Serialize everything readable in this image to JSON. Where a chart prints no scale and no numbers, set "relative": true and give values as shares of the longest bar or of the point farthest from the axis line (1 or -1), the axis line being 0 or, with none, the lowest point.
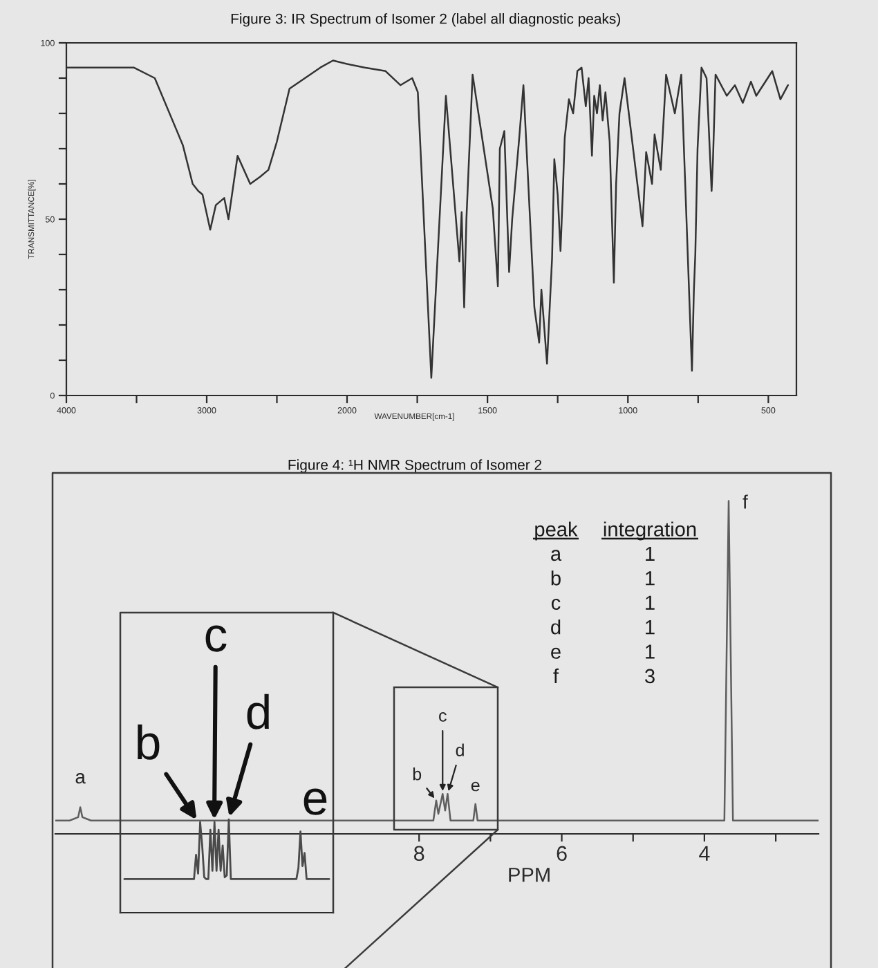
{
  "chart_data": [
    {
      "type": "line",
      "title": "Figure 3: IR Spectrum of Isomer 2 (label all diagnostic peaks)",
      "ylabel": "TRANSMITTANCE[%]",
      "x": [
        4000,
        3520,
        3370,
        3170,
        3100,
        3060,
        3030,
        2975,
        2935,
        2875,
        2845,
        2780,
        2690,
        2620,
        2560,
        2500,
        2410,
        2190,
        2100,
        2000
      ],
      "series": [
        {
          "color": "#333333",
          "values": [
            93,
            93,
            90,
            71,
            60,
            58,
            57,
            47,
            54,
            56,
            50,
            68,
            60,
            62,
            64,
            72,
            87,
            93,
            95,
            94
          ]
        }
      ],
      "xlim": [
        4000,
        2000
      ],
      "xticks": [
        4000,
        {
          "value": 3500,
          "label": null
        },
        3000,
        {
          "value": 2500,
          "label": null
        },
        2000
      ],
      "ylim": [
        0,
        100
      ],
      "yticks": [
        0,
        {
          "value": 10,
          "label": null
        },
        {
          "value": 20,
          "label": null
        },
        {
          "value": 30,
          "label": null
        },
        {
          "value": 40,
          "label": null
        },
        50,
        {
          "value": 60,
          "label": null
        },
        {
          "value": 70,
          "label": null
        },
        {
          "value": 80,
          "label": null
        },
        {
          "value": 90,
          "label": null
        },
        100
      ]
    },
    {
      "type": "line",
      "xlabel": "WAVENUMBER[cm-1]",
      "x": [
        2000,
        1937,
        1863,
        1810,
        1768,
        1748,
        1700,
        1648,
        1600,
        1592,
        1583,
        1575,
        1553,
        1481,
        1463,
        1456,
        1440,
        1423,
        1412,
        1387,
        1372,
        1333,
        1316,
        1308,
        1288,
        1270,
        1262,
        1250,
        1240,
        1232,
        1225,
        1210,
        1195,
        1180,
        1165,
        1150,
        1140,
        1128,
        1120,
        1110,
        1100,
        1090,
        1080,
        1065,
        1050,
        1042,
        1030,
        1012,
        948,
        935,
        914,
        905,
        883,
        864,
        833,
        810,
        772,
        765,
        760,
        752,
        738,
        720,
        702,
        697,
        688,
        648,
        619,
        591,
        562,
        543,
        486,
        457,
        430
      ],
      "series": [
        {
          "color": "#333333",
          "values": [
            94,
            93,
            92,
            88,
            90,
            86,
            5,
            85,
            38,
            52,
            25,
            50,
            91,
            53,
            31,
            70,
            75,
            35,
            50,
            73,
            88,
            25,
            15,
            30,
            9,
            39,
            67,
            57,
            41,
            57,
            73,
            84,
            80,
            92,
            93,
            82,
            90,
            68,
            85,
            80,
            88,
            78,
            86,
            72,
            32,
            60,
            80,
            90,
            48,
            69,
            60,
            74,
            64,
            91,
            80,
            91,
            7,
            30,
            40,
            70,
            93,
            90,
            58,
            67,
            91,
            85,
            88,
            83,
            89,
            85,
            92,
            84,
            88
          ]
        }
      ],
      "xlim": [
        2000,
        400
      ],
      "xticks": [
        {
          "value": 1750,
          "label": null
        },
        1500,
        {
          "value": 1250,
          "label": null
        },
        1000,
        {
          "value": 750,
          "label": null
        },
        500
      ],
      "ylim": [
        0,
        100
      ],
      "tick_labels": "x"
    },
    {
      "type": "line",
      "title": "Figure 4: ¹H NMR Spectrum of Isomer 2",
      "xlabel": "PPM",
      "relative": true,
      "x": [
        13.1,
        12.9,
        12.78,
        12.75,
        12.72,
        12.6,
        7.8,
        7.76,
        7.73,
        7.67,
        7.635,
        7.6,
        7.56,
        7.24,
        7.21,
        7.18,
        3.72,
        3.66,
        3.6,
        2.4
      ],
      "series": [
        {
          "color": "#5e5e5e",
          "values": [
            0.04,
            0.04,
            0.05,
            0.08,
            0.05,
            0.04,
            0.04,
            0.1,
            0.06,
            0.12,
            0.07,
            0.12,
            0.04,
            0.04,
            0.09,
            0.04,
            0.04,
            1,
            0.04,
            0.04
          ]
        }
      ],
      "xlim": [
        13.1,
        2.4
      ],
      "xticks": [
        8,
        {
          "value": 7,
          "label": null
        },
        6,
        {
          "value": 5,
          "label": null
        },
        4,
        {
          "value": 3,
          "label": null
        }
      ],
      "annotations": [
        {
          "text": "a",
          "x": 12.75,
          "y": 0.08
        },
        {
          "text": "b",
          "x": 7.76,
          "y": 0.1
        },
        {
          "text": "c",
          "x": 7.67,
          "y": 0.12
        },
        {
          "text": "d",
          "x": 7.6,
          "y": 0.12
        },
        {
          "text": "e",
          "x": 7.21,
          "y": 0.09
        },
        {
          "text": "f",
          "x": 3.66,
          "y": 1
        },
        "peak",
        "integration",
        "a",
        "1",
        "b",
        "1",
        "c",
        "1",
        "d",
        "1",
        "e",
        "1",
        "f",
        "3"
      ]
    },
    {
      "type": "line",
      "relative": true,
      "categories": [
        null,
        null,
        null,
        null,
        null,
        null,
        null,
        null,
        null,
        null,
        null,
        null,
        null,
        null,
        null,
        null,
        null,
        null,
        null,
        null,
        null,
        null,
        null,
        null,
        null,
        null,
        null,
        null,
        null,
        null,
        null,
        null,
        null,
        null,
        null,
        null,
        null,
        null,
        null,
        null,
        null,
        null,
        null,
        null,
        null,
        null,
        null,
        null,
        null,
        null,
        null,
        null,
        null,
        null,
        null,
        null,
        null,
        null,
        null,
        null,
        null,
        null,
        null,
        null,
        null,
        null,
        null,
        null,
        null,
        null,
        null,
        null,
        null,
        null,
        null,
        null,
        null,
        null,
        null,
        null,
        null,
        null,
        null,
        null,
        null,
        null,
        null,
        null,
        null,
        null,
        null,
        null,
        null,
        null,
        null,
        null,
        null,
        null,
        null,
        null,
        null
      ],
      "series": [
        {
          "color": "#4a4a4a",
          "values": [
            0.36,
            0.36,
            0.36,
            0.36,
            0.36,
            0.36,
            0.36,
            0.36,
            0.36,
            0.36,
            0.36,
            0.36,
            0.36,
            0.36,
            0.36,
            0.36,
            0.36,
            0.36,
            0.36,
            0.36,
            0.36,
            0.36,
            0.36,
            0.36,
            0.36,
            0.36,
            0.36,
            0.36,
            0.36,
            0.36,
            0.36,
            0.36,
            0.36,
            0.36,
            0.36,
            0.62,
            0.42,
            0.97,
            0.72,
            0.38,
            0.36,
            0.36,
            0.89,
            0.45,
            0.97,
            0.45,
            0.89,
            0.45,
            0.72,
            0.38,
            0.4,
            1,
            0.36,
            0.36,
            0.36,
            0.36,
            0.36,
            0.36,
            0.36,
            0.36,
            0.36,
            0.36,
            0.36,
            0.36,
            0.36,
            0.36,
            0.36,
            0.36,
            0.36,
            0.36,
            0.36,
            0.36,
            0.36,
            0.36,
            0.36,
            0.36,
            0.36,
            0.36,
            0.36,
            0.36,
            0.36,
            0.36,
            0.36,
            0.36,
            0.36,
            0.48,
            0.87,
            0.5,
            0.64,
            0.36,
            0.36,
            0.36,
            0.36,
            0.36,
            0.36,
            0.36,
            0.36,
            0.36,
            0.36,
            0.36,
            0.36
          ]
        }
      ],
      "annotations": [
        "b",
        "c",
        "d",
        "e"
      ]
    }
  ]
}
